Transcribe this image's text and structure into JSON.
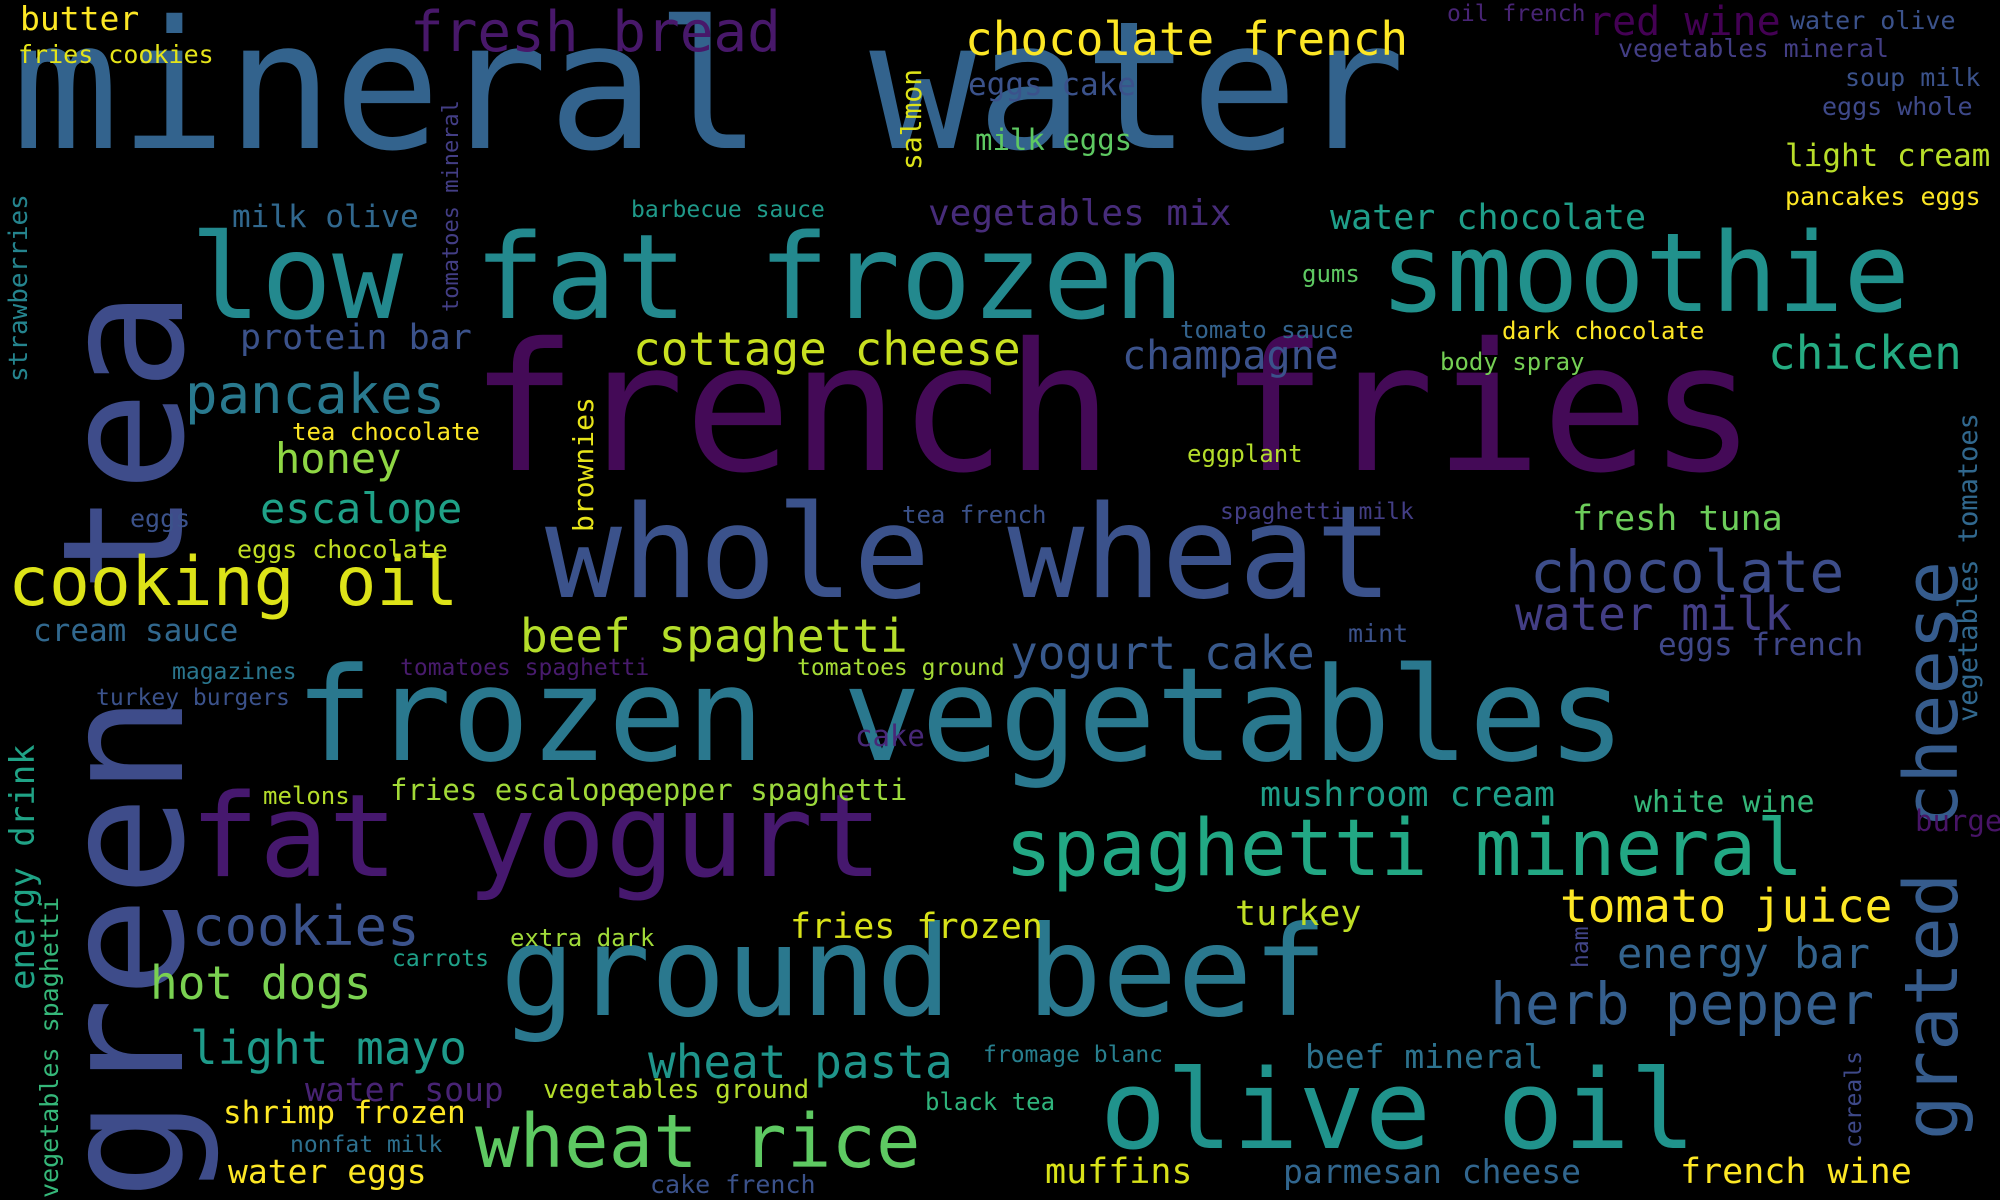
{
  "background": "#000000",
  "words": [
    {
      "text": "mineral water",
      "color": "#33638d"
    },
    {
      "text": "french fries",
      "color": "#440a57"
    },
    {
      "text": "green tea",
      "color": "#3e4c8a"
    },
    {
      "text": "whole wheat",
      "color": "#3b528b"
    },
    {
      "text": "frozen vegetables",
      "color": "#2a788e"
    },
    {
      "text": "low fat frozen",
      "color": "#23898e"
    },
    {
      "text": "smoothie",
      "color": "#21918c"
    },
    {
      "text": "ground beef",
      "color": "#2a788e"
    },
    {
      "text": "fat yogurt",
      "color": "#46186e"
    },
    {
      "text": "olive oil",
      "color": "#20938c"
    },
    {
      "text": "spaghetti mineral",
      "color": "#22a884"
    },
    {
      "text": "grated cheese",
      "color": "#365c8d"
    },
    {
      "text": "cooking oil",
      "color": "#dde318"
    },
    {
      "text": "wheat rice",
      "color": "#5ec962"
    },
    {
      "text": "chocolate",
      "color": "#3d4d8a"
    },
    {
      "text": "herb pepper",
      "color": "#355f8d"
    },
    {
      "text": "water milk",
      "color": "#433e85"
    },
    {
      "text": "beef spaghetti",
      "color": "#b5de2b"
    },
    {
      "text": "yogurt cake",
      "color": "#38598c"
    },
    {
      "text": "cookies",
      "color": "#3b528b"
    },
    {
      "text": "pancakes",
      "color": "#29798e"
    },
    {
      "text": "cottage cheese",
      "color": "#c8e020"
    },
    {
      "text": "fresh bread",
      "color": "#48186a"
    },
    {
      "text": "chocolate french",
      "color": "#fde725"
    },
    {
      "text": "chicken",
      "color": "#25ac82"
    },
    {
      "text": "champagne",
      "color": "#3b528b"
    },
    {
      "text": "tomato juice",
      "color": "#fde725"
    },
    {
      "text": "energy bar",
      "color": "#33638d"
    },
    {
      "text": "hot dogs",
      "color": "#7ad151"
    },
    {
      "text": "light mayo",
      "color": "#1e9b8a"
    },
    {
      "text": "wheat pasta",
      "color": "#1f958b"
    },
    {
      "text": "honey",
      "color": "#8fd744"
    },
    {
      "text": "escalope",
      "color": "#1fa187"
    },
    {
      "text": "protein bar",
      "color": "#3b528b"
    },
    {
      "text": "vegetables mix",
      "color": "#472c7a"
    },
    {
      "text": "water chocolate",
      "color": "#1f9e89"
    },
    {
      "text": "fresh tuna",
      "color": "#6ccd5a"
    },
    {
      "text": "mushroom cream",
      "color": "#1f9f88"
    },
    {
      "text": "white wine",
      "color": "#35b779"
    },
    {
      "text": "turkey",
      "color": "#c0df25"
    },
    {
      "text": "fries frozen",
      "color": "#d8e219"
    },
    {
      "text": "muffins",
      "color": "#d8e219"
    },
    {
      "text": "parmesan cheese",
      "color": "#31668e"
    },
    {
      "text": "french wine",
      "color": "#fde725"
    },
    {
      "text": "beef mineral",
      "color": "#2c728e"
    },
    {
      "text": "water eggs",
      "color": "#fde725"
    },
    {
      "text": "shrimp frozen",
      "color": "#fde725"
    },
    {
      "text": "water soup",
      "color": "#482374"
    },
    {
      "text": "vegetables ground",
      "color": "#b5de2b"
    },
    {
      "text": "butter",
      "color": "#fde725"
    },
    {
      "text": "fries cookies",
      "color": "#e5e419"
    },
    {
      "text": "eggs cake",
      "color": "#3b528b"
    },
    {
      "text": "milk eggs",
      "color": "#5ec962"
    },
    {
      "text": "milk olive",
      "color": "#31688e"
    },
    {
      "text": "light cream",
      "color": "#b8de29"
    },
    {
      "text": "pancakes eggs",
      "color": "#fde725"
    },
    {
      "text": "red wine",
      "color": "#440154"
    },
    {
      "text": "water olive",
      "color": "#3b528b"
    },
    {
      "text": "vegetables mineral",
      "color": "#433e85"
    },
    {
      "text": "oil french",
      "color": "#482475"
    },
    {
      "text": "soup milk",
      "color": "#3b528b"
    },
    {
      "text": "eggs whole",
      "color": "#3e4989"
    },
    {
      "text": "dark chocolate",
      "color": "#fde725"
    },
    {
      "text": "body spray",
      "color": "#75d054"
    },
    {
      "text": "gums",
      "color": "#5ec962"
    },
    {
      "text": "tomato sauce",
      "color": "#33638d"
    },
    {
      "text": "eggplant",
      "color": "#b5de2b"
    },
    {
      "text": "barbecue sauce",
      "color": "#1f9a8a"
    },
    {
      "text": "tea chocolate",
      "color": "#fde725"
    },
    {
      "text": "eggs",
      "color": "#3b528b"
    },
    {
      "text": "eggs chocolate",
      "color": "#c2df23"
    },
    {
      "text": "cream sauce",
      "color": "#31688e"
    },
    {
      "text": "magazines",
      "color": "#2a768e"
    },
    {
      "text": "turkey burgers",
      "color": "#3b528b"
    },
    {
      "text": "melons",
      "color": "#b5de2b"
    },
    {
      "text": "fries escalope",
      "color": "#a2da37"
    },
    {
      "text": "pepper spaghetti",
      "color": "#9bd93c"
    },
    {
      "text": "extra dark",
      "color": "#a0da39"
    },
    {
      "text": "carrots",
      "color": "#1fa088"
    },
    {
      "text": "nonfat milk",
      "color": "#2d708e"
    },
    {
      "text": "cake french",
      "color": "#3b528b"
    },
    {
      "text": "black tea",
      "color": "#2fb47c"
    },
    {
      "text": "fromage blanc",
      "color": "#277f8e"
    },
    {
      "text": "tea french",
      "color": "#3b528b"
    },
    {
      "text": "spaghetti milk",
      "color": "#433e85"
    },
    {
      "text": "mint",
      "color": "#3b528b"
    },
    {
      "text": "tomatoes spaghetti",
      "color": "#481b6d"
    },
    {
      "text": "tomatoes ground",
      "color": "#a5db36"
    },
    {
      "text": "cake",
      "color": "#482878"
    },
    {
      "text": "eggs french",
      "color": "#3f4788"
    },
    {
      "text": "burger",
      "color": "#481467"
    },
    {
      "text": "strawberries",
      "color": "#25848e"
    },
    {
      "text": "tomatoes mineral",
      "color": "#433e85"
    },
    {
      "text": "salmon",
      "color": "#dde318"
    },
    {
      "text": "brownies",
      "color": "#e7e419"
    },
    {
      "text": "energy drink",
      "color": "#20a386"
    },
    {
      "text": "vegetables spaghetti",
      "color": "#35b779"
    },
    {
      "text": "ham",
      "color": "#414487"
    },
    {
      "text": "cereals",
      "color": "#3e4989"
    },
    {
      "text": "vegetables tomatoes",
      "color": "#31688e"
    }
  ]
}
